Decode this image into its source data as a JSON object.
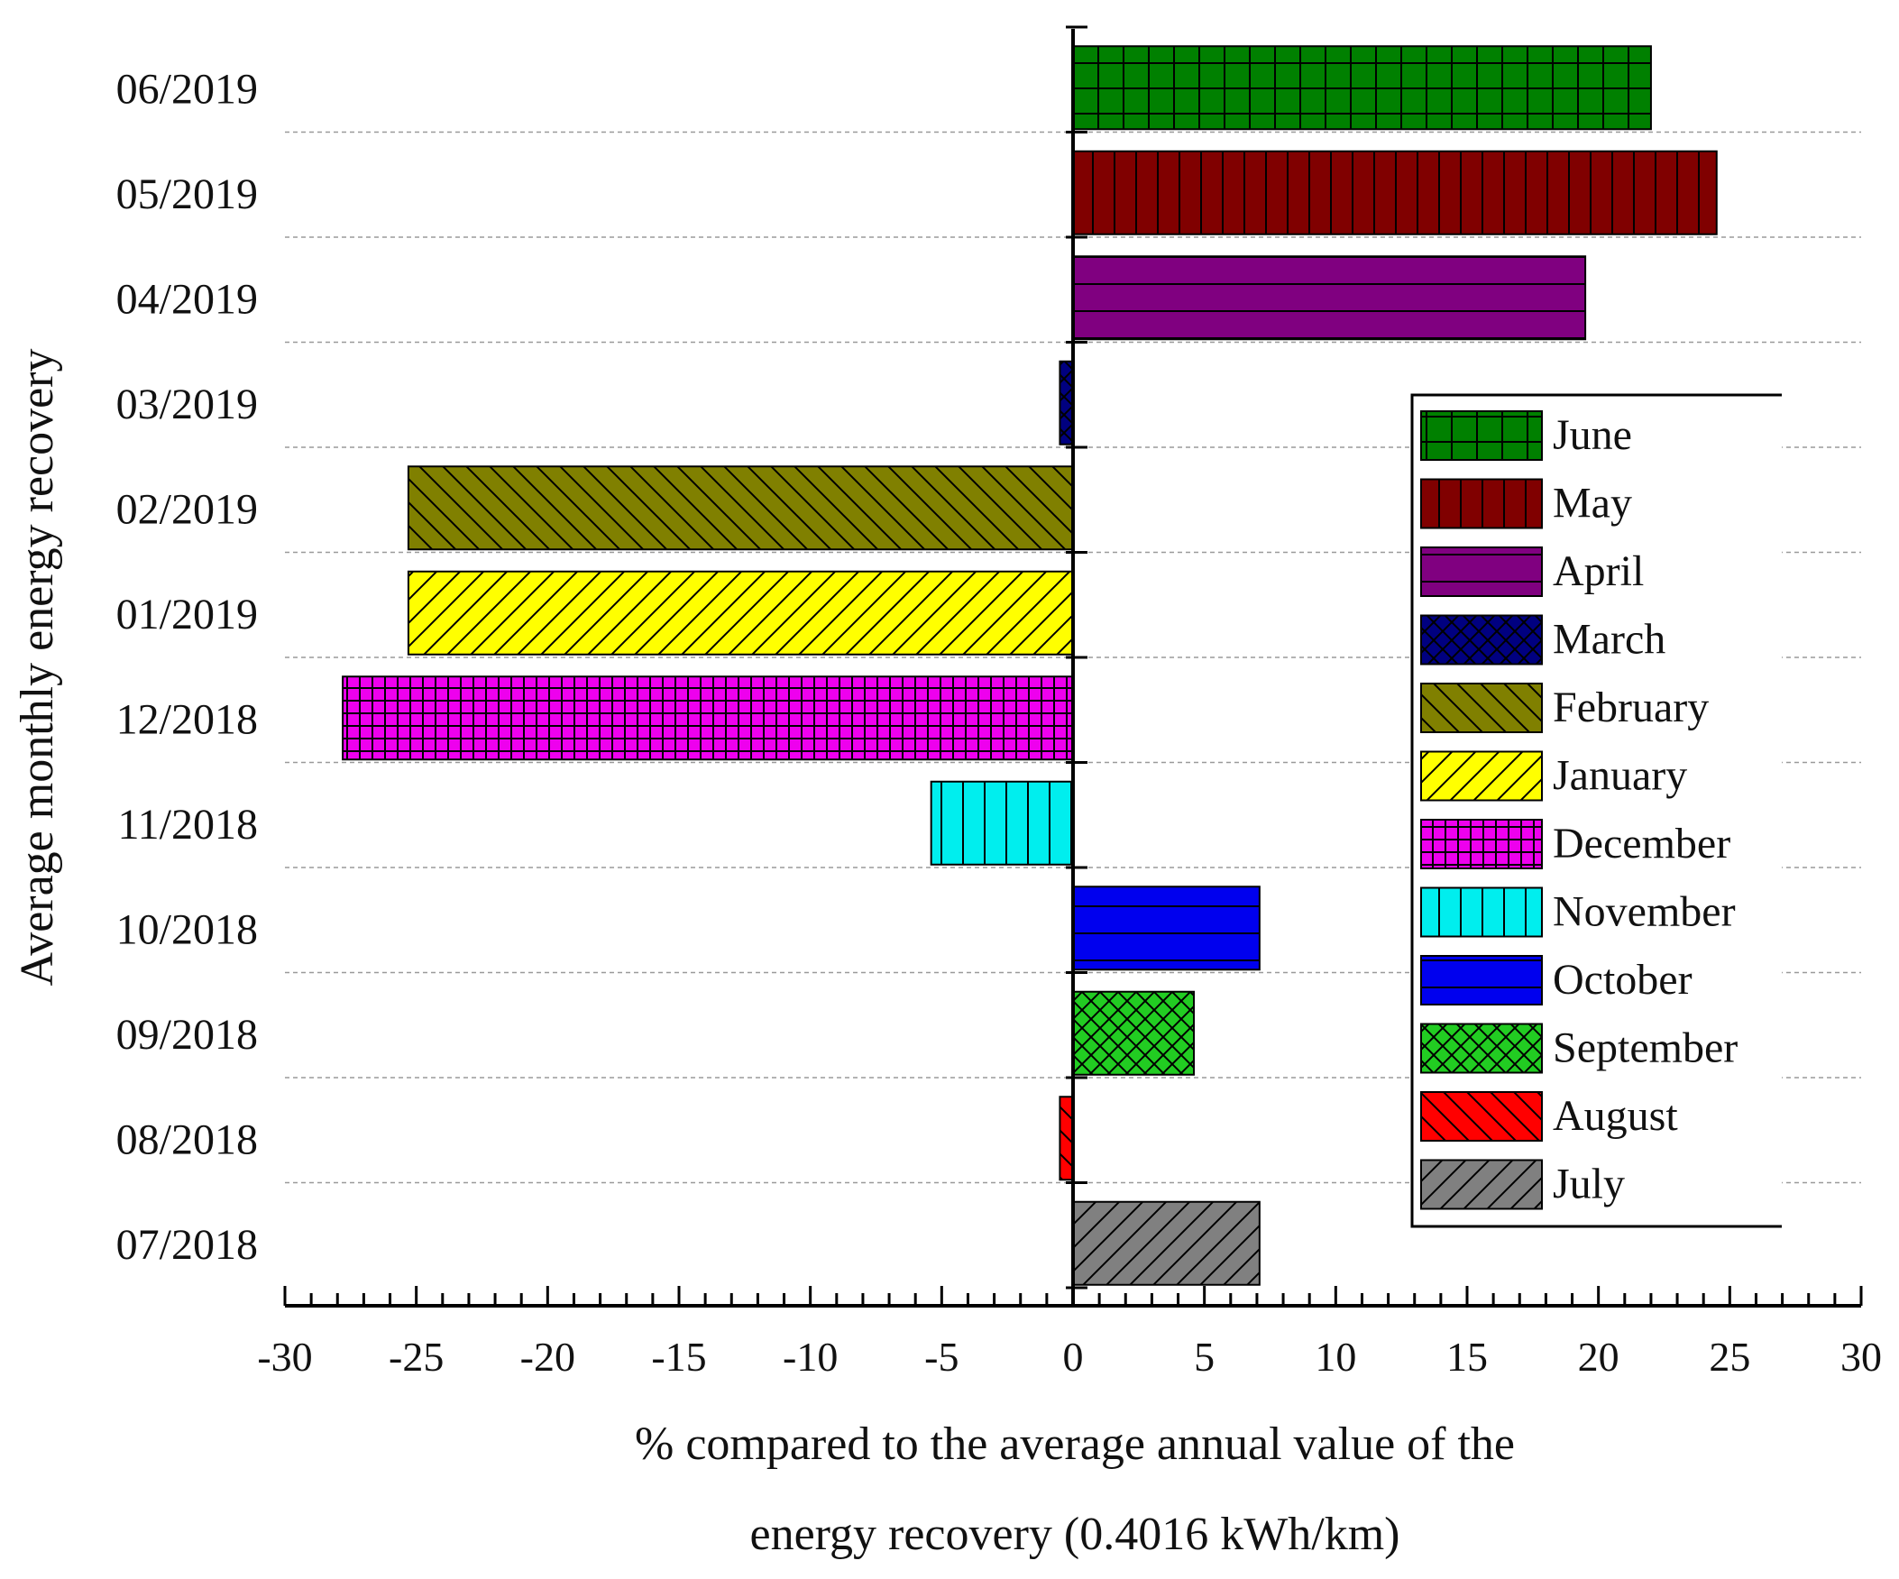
{
  "chart_data": {
    "type": "bar",
    "orientation": "horizontal",
    "title": "",
    "xlabel_lines": [
      "% compared to the average annual value of the",
      "energy recovery (0.4016 kWh/km)"
    ],
    "ylabel": "Average monthly energy recovery",
    "xlim": [
      -30,
      30
    ],
    "xticks": [
      "-30",
      "-25",
      "-20",
      "-15",
      "-10",
      "-5",
      "0",
      "5",
      "10",
      "15",
      "20",
      "25",
      "30"
    ],
    "legend_position": "right",
    "bars": [
      {
        "category": "07/2018",
        "month": "July",
        "value": 7.1,
        "color": "#808080",
        "pattern": "diag-up"
      },
      {
        "category": "08/2018",
        "month": "August",
        "value": -0.5,
        "color": "#ff0000",
        "pattern": "diag-down"
      },
      {
        "category": "09/2018",
        "month": "September",
        "value": 4.6,
        "color": "#22cc22",
        "pattern": "cross-diag"
      },
      {
        "category": "10/2018",
        "month": "October",
        "value": 7.1,
        "color": "#0000ee",
        "pattern": "horizontal"
      },
      {
        "category": "11/2018",
        "month": "November",
        "value": -5.4,
        "color": "#00eeee",
        "pattern": "vertical"
      },
      {
        "category": "12/2018",
        "month": "December",
        "value": -27.8,
        "color": "#ee00ee",
        "pattern": "grid-fine"
      },
      {
        "category": "01/2019",
        "month": "January",
        "value": -25.3,
        "color": "#ffff00",
        "pattern": "diag-up"
      },
      {
        "category": "02/2019",
        "month": "February",
        "value": -25.3,
        "color": "#808000",
        "pattern": "diag-down"
      },
      {
        "category": "03/2019",
        "month": "March",
        "value": -0.5,
        "color": "#000080",
        "pattern": "cross-diag"
      },
      {
        "category": "04/2019",
        "month": "April",
        "value": 19.5,
        "color": "#800080",
        "pattern": "horizontal"
      },
      {
        "category": "05/2019",
        "month": "May",
        "value": 24.5,
        "color": "#800000",
        "pattern": "vertical"
      },
      {
        "category": "06/2019",
        "month": "June",
        "value": 22.0,
        "color": "#008000",
        "pattern": "grid"
      }
    ],
    "legend": [
      {
        "label": "June",
        "color": "#008000",
        "pattern": "grid"
      },
      {
        "label": "May",
        "color": "#800000",
        "pattern": "vertical"
      },
      {
        "label": "April",
        "color": "#800080",
        "pattern": "horizontal"
      },
      {
        "label": "March",
        "color": "#000080",
        "pattern": "cross-diag"
      },
      {
        "label": "February",
        "color": "#808000",
        "pattern": "diag-down"
      },
      {
        "label": "January",
        "color": "#ffff00",
        "pattern": "diag-up"
      },
      {
        "label": "December",
        "color": "#ee00ee",
        "pattern": "grid-fine"
      },
      {
        "label": "November",
        "color": "#00eeee",
        "pattern": "vertical"
      },
      {
        "label": "October",
        "color": "#0000ee",
        "pattern": "horizontal"
      },
      {
        "label": "September",
        "color": "#22cc22",
        "pattern": "cross-diag"
      },
      {
        "label": "August",
        "color": "#ff0000",
        "pattern": "diag-down"
      },
      {
        "label": "July",
        "color": "#808080",
        "pattern": "diag-up"
      }
    ]
  }
}
